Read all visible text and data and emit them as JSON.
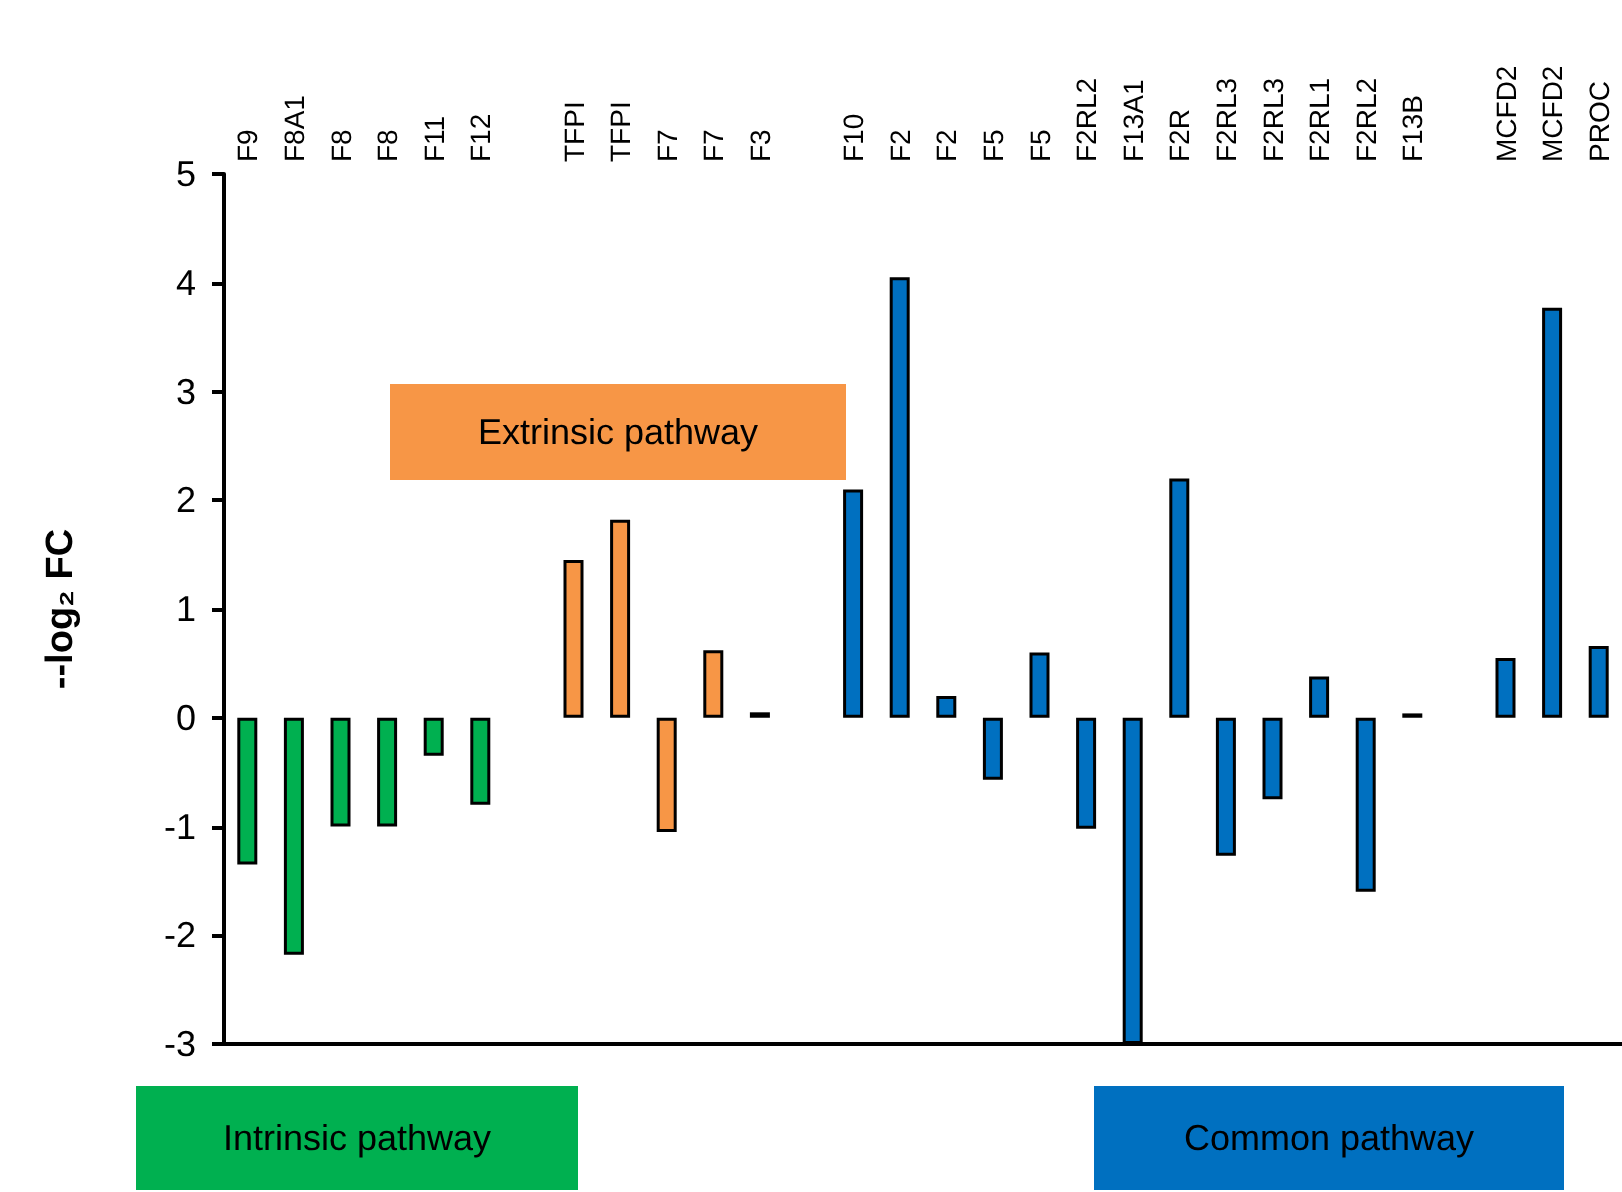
{
  "chart_data": {
    "type": "bar",
    "ylabel": "--log₂ FC",
    "categories": [
      "F9",
      "F8A1",
      "F8",
      "F8",
      "F11",
      "F12",
      null,
      "TFPI",
      "TFPI",
      "F7",
      "F7",
      "F3",
      null,
      "F10",
      "F2",
      "F2",
      "F5",
      "F5",
      "F2RL2",
      "F13A1",
      "F2R",
      "F2RL3",
      "F2RL3",
      "F2RL1",
      "F2RL2",
      "F13B",
      null,
      "MCFD2",
      "MCFD2",
      "PROC"
    ],
    "values": [
      -1.35,
      -2.18,
      -1.0,
      -1.0,
      -0.35,
      -0.8,
      null,
      1.45,
      1.82,
      -1.05,
      0.62,
      0.05,
      null,
      2.1,
      4.05,
      0.2,
      -0.57,
      0.6,
      -1.02,
      -3.0,
      2.2,
      -1.27,
      -0.75,
      0.38,
      -1.6,
      0.04,
      null,
      0.55,
      3.77,
      0.66
    ],
    "colors": [
      "#00b050",
      "#00b050",
      "#00b050",
      "#00b050",
      "#00b050",
      "#00b050",
      "#00b050",
      "#f79646",
      "#f79646",
      "#f79646",
      "#f79646",
      "#f79646",
      "#f79646",
      "#0070c0",
      "#0070c0",
      "#0070c0",
      "#0070c0",
      "#0070c0",
      "#0070c0",
      "#0070c0",
      "#0070c0",
      "#0070c0",
      "#0070c0",
      "#0070c0",
      "#0070c0",
      "#0070c0",
      "#0070c0",
      "#0070c0",
      "#0070c0",
      "#0070c0"
    ],
    "ylim": [
      -3,
      5
    ],
    "yticks": [
      -3,
      -2,
      -1,
      0,
      1,
      2,
      3,
      4,
      5
    ],
    "annotations": [
      "Intrinsic pathway",
      "Extrinsic pathway",
      "Common pathway"
    ],
    "grid": false
  }
}
